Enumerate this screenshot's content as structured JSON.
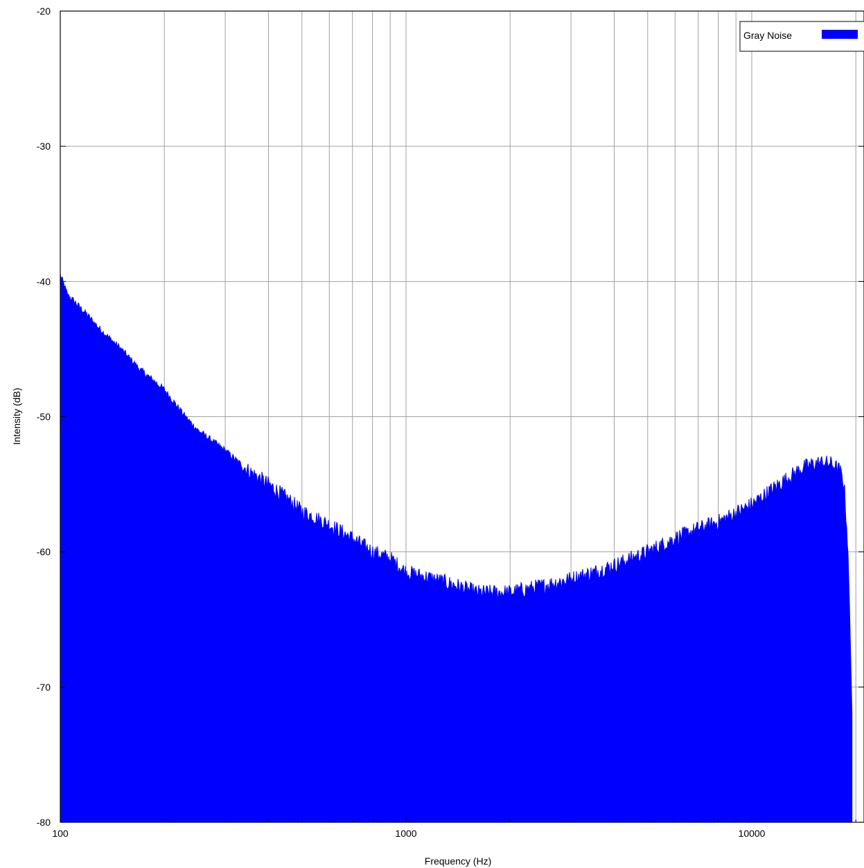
{
  "chart_data": {
    "type": "area",
    "title": "",
    "xlabel": "Frequency (Hz)",
    "ylabel": "Intensity (dB)",
    "x_scale": "log",
    "xlim": [
      100,
      22050
    ],
    "ylim": [
      -80,
      -20
    ],
    "x_ticks": [
      100,
      1000,
      10000
    ],
    "x_tick_labels": [
      "100",
      "1000",
      "10000"
    ],
    "y_ticks": [
      -80,
      -70,
      -60,
      -50,
      -40,
      -30,
      -20
    ],
    "y_tick_labels": [
      "-80",
      "-70",
      "-60",
      "-50",
      "-40",
      "-30",
      "-20"
    ],
    "grid": true,
    "legend_position": "top-right",
    "fill_color": "#0000ff",
    "series": [
      {
        "name": "Gray Noise",
        "color": "#0000ff",
        "x": [
          100,
          105,
          110,
          120,
          130,
          150,
          170,
          200,
          230,
          250,
          300,
          350,
          400,
          450,
          500,
          600,
          700,
          800,
          900,
          1000,
          1200,
          1400,
          1600,
          1800,
          2000,
          2500,
          3000,
          3500,
          4000,
          5000,
          6000,
          7000,
          8000,
          10000,
          12000,
          14000,
          15000,
          16000,
          17000,
          18000,
          18500,
          19000,
          19500
        ],
        "y": [
          -39.5,
          -41,
          -41.5,
          -42.5,
          -43.5,
          -45,
          -46.5,
          -48,
          -50,
          -51,
          -52.5,
          -54,
          -55,
          -56,
          -57,
          -58,
          -59,
          -60,
          -60.5,
          -61.5,
          -62,
          -62.5,
          -63,
          -63,
          -63,
          -62.5,
          -62,
          -61.5,
          -61,
          -60,
          -59,
          -58.3,
          -57.8,
          -56.5,
          -55,
          -53.8,
          -53.5,
          -53.4,
          -53.5,
          -54,
          -55,
          -60,
          -80
        ]
      }
    ]
  }
}
